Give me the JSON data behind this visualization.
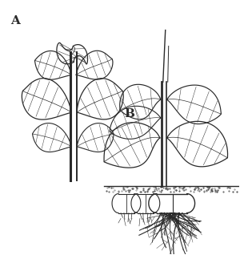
{
  "label_A": "A",
  "label_B": "B",
  "bg_color": "#ffffff",
  "ink_color": "#2a2a2a",
  "fig_width": 3.0,
  "fig_height": 3.18,
  "dpi": 100
}
